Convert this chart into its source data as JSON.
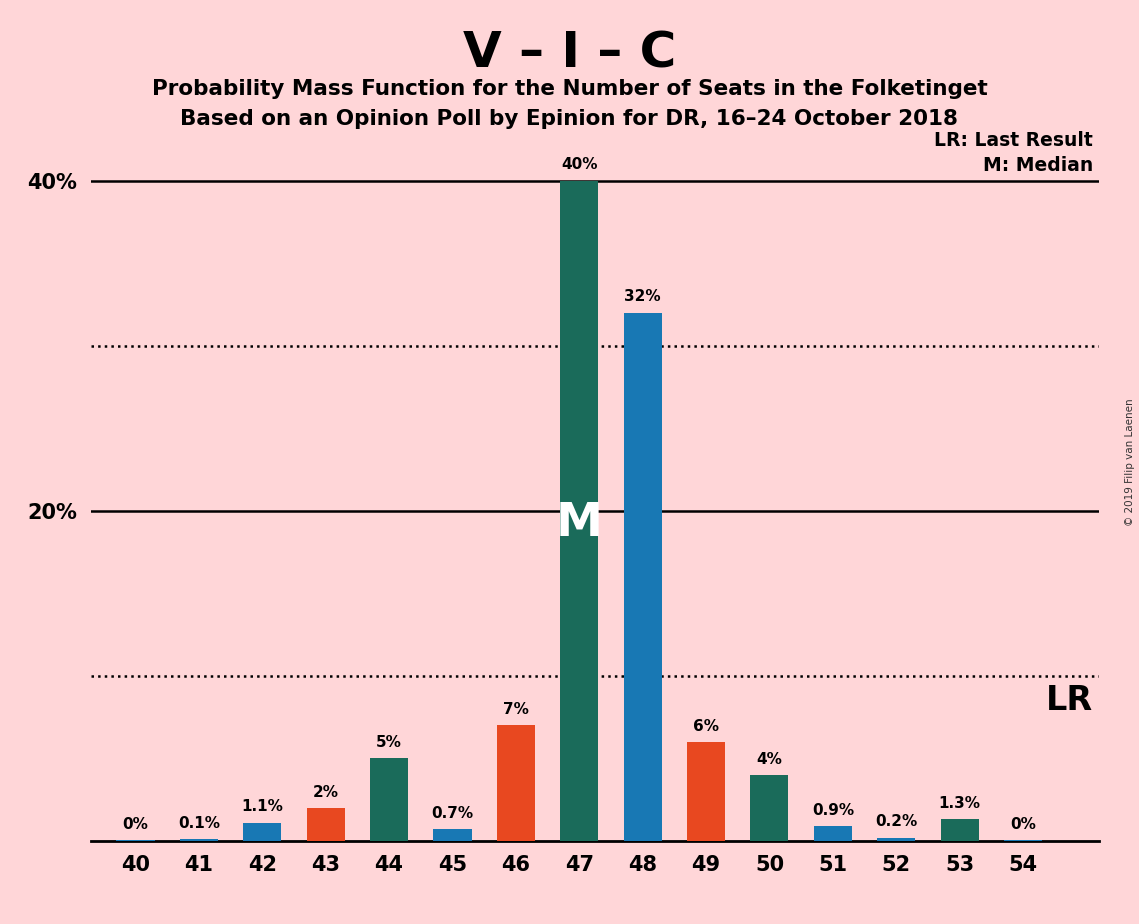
{
  "title": "V – I – C",
  "subtitle1": "Probability Mass Function for the Number of Seats in the Folketinget",
  "subtitle2": "Based on an Opinion Poll by Epinion for DR, 16–24 October 2018",
  "copyright": "© 2019 Filip van Laenen",
  "background_color": "#FFD6D8",
  "seats": [
    40,
    41,
    42,
    43,
    44,
    45,
    46,
    47,
    48,
    49,
    50,
    51,
    52,
    53,
    54
  ],
  "pmf_values": [
    0.05,
    0.1,
    1.1,
    2.0,
    5.0,
    0.7,
    7.0,
    40.0,
    32.0,
    6.0,
    4.0,
    0.9,
    0.2,
    1.3,
    0.05
  ],
  "pmf_labels": [
    "0%",
    "0.1%",
    "1.1%",
    "2%",
    "5%",
    "0.7%",
    "7%",
    "40%",
    "32%",
    "6%",
    "4%",
    "0.9%",
    "0.2%",
    "1.3%",
    "0%"
  ],
  "color_blue": "#1878b4",
  "color_orange": "#e84820",
  "color_teal": "#1a6b5a",
  "bar_colors_list": [
    "#1878b4",
    "#1878b4",
    "#1878b4",
    "#e84820",
    "#1a6b5a",
    "#1878b4",
    "#e84820",
    "#1a6b5a",
    "#1878b4",
    "#e84820",
    "#1a6b5a",
    "#1878b4",
    "#1878b4",
    "#1a6b5a",
    "#1878b4"
  ],
  "ylim_max": 43,
  "solid_hlines": [
    20,
    40
  ],
  "dotted_hlines": [
    10,
    30
  ],
  "ytick_positions": [
    20,
    40
  ],
  "ytick_labels": [
    "20%",
    "40%"
  ],
  "median_seat": 47,
  "median_label": "M",
  "legend_lr_text": "LR: Last Result",
  "legend_m_text": "M: Median",
  "lr_label": "LR",
  "bar_width": 0.6
}
